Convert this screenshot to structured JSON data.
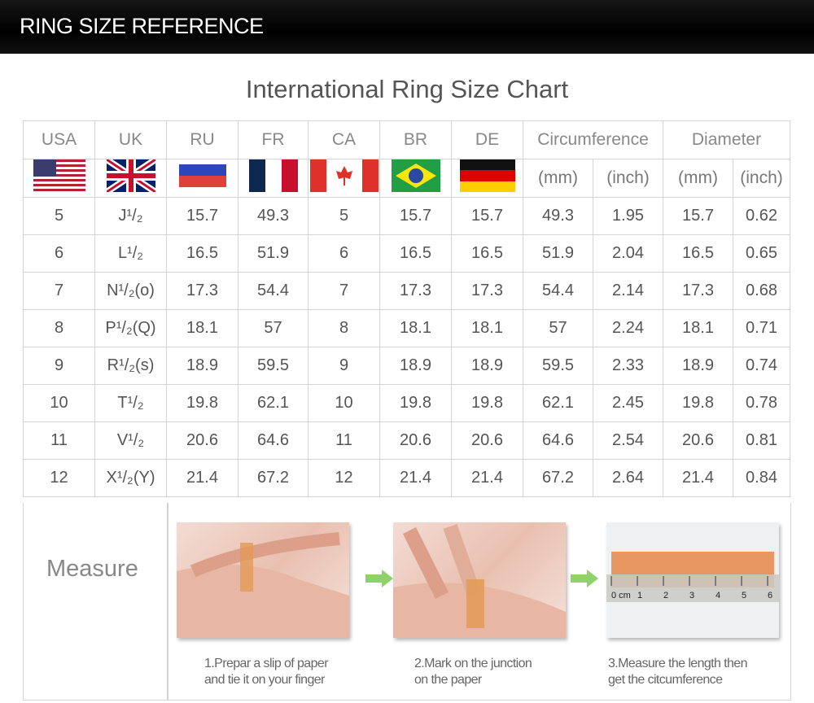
{
  "banner": {
    "title": "RING SIZE REFERENCE"
  },
  "title": "International Ring Size Chart",
  "header": {
    "countries": [
      "USA",
      "UK",
      "RU",
      "FR",
      "CA",
      "BR",
      "DE"
    ],
    "circumference": "Circumference",
    "diameter": "Diameter",
    "units": [
      "(mm)",
      "(inch)",
      "(mm)",
      "(inch)"
    ]
  },
  "flags": [
    "us-flag",
    "uk-flag",
    "russia-flag",
    "france-flag",
    "canada-flag",
    "brazil-flag",
    "germany-flag"
  ],
  "rows": [
    [
      "5",
      "J¹/₂",
      "15.7",
      "49.3",
      "5",
      "15.7",
      "15.7",
      "49.3",
      "1.95",
      "15.7",
      "0.62"
    ],
    [
      "6",
      "L¹/₂",
      "16.5",
      "51.9",
      "6",
      "16.5",
      "16.5",
      "51.9",
      "2.04",
      "16.5",
      "0.65"
    ],
    [
      "7",
      "N¹/₂(o)",
      "17.3",
      "54.4",
      "7",
      "17.3",
      "17.3",
      "54.4",
      "2.14",
      "17.3",
      "0.68"
    ],
    [
      "8",
      "P¹/₂(Q)",
      "18.1",
      "57",
      "8",
      "18.1",
      "18.1",
      "57",
      "2.24",
      "18.1",
      "0.71"
    ],
    [
      "9",
      "R¹/₂(s)",
      "18.9",
      "59.5",
      "9",
      "18.9",
      "18.9",
      "59.5",
      "2.33",
      "18.9",
      "0.74"
    ],
    [
      "10",
      "T¹/₂",
      "19.8",
      "62.1",
      "10",
      "19.8",
      "19.8",
      "62.1",
      "2.45",
      "19.8",
      "0.78"
    ],
    [
      "11",
      "V¹/₂",
      "20.6",
      "64.6",
      "11",
      "20.6",
      "20.6",
      "64.6",
      "2.54",
      "20.6",
      "0.81"
    ],
    [
      "12",
      "X¹/₂(Y)",
      "21.4",
      "67.2",
      "12",
      "21.4",
      "21.4",
      "67.2",
      "2.64",
      "21.4",
      "0.84"
    ]
  ],
  "measure": {
    "label": "Measure",
    "steps": [
      {
        "line1": "1.Prepar a slip of paper",
        "line2": "and tie it on your finger"
      },
      {
        "line1": "2.Mark on the junction",
        "line2": "on the paper"
      },
      {
        "line1": "3.Measure the length then",
        "line2": "get the citcumference"
      }
    ],
    "ruler_marks": [
      "0 cm",
      "1",
      "2",
      "3",
      "4",
      "5",
      "6"
    ],
    "arrow_color": "#8fd16a"
  }
}
